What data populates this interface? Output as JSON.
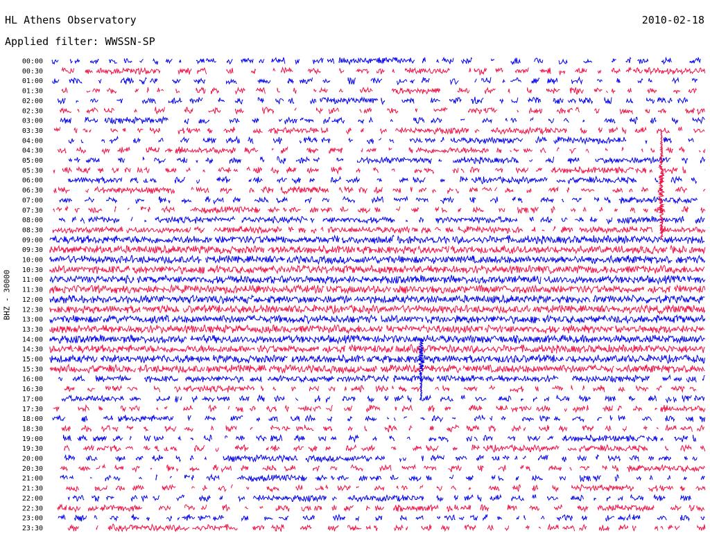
{
  "header": {
    "title": "HL Athens Observatory",
    "filter_label": "Applied filter: WWSSN-SP",
    "date": "2010-02-18"
  },
  "chart_data": {
    "type": "line",
    "title": "HL Athens Observatory",
    "subtitle": "Applied filter: WWSSN-SP",
    "date": "2010-02-18",
    "ylabel": "BHZ - 30000",
    "xlabel": "",
    "colors": [
      "#0000ee",
      "#ee1144"
    ],
    "row_labels": [
      "00:00",
      "00:30",
      "01:00",
      "01:30",
      "02:00",
      "02:30",
      "03:00",
      "03:30",
      "04:00",
      "04:30",
      "05:00",
      "05:30",
      "06:00",
      "06:30",
      "07:00",
      "07:30",
      "08:00",
      "08:30",
      "09:00",
      "09:30",
      "10:00",
      "10:30",
      "11:00",
      "11:30",
      "12:00",
      "12:30",
      "13:00",
      "13:30",
      "14:00",
      "14:30",
      "15:00",
      "15:30",
      "16:00",
      "16:30",
      "17:00",
      "17:30",
      "18:00",
      "18:30",
      "19:00",
      "19:30",
      "20:00",
      "20:30",
      "21:00",
      "21:30",
      "22:00",
      "22:30",
      "23:00",
      "23:30"
    ],
    "row_activity": [
      0.25,
      0.2,
      0.2,
      0.25,
      0.25,
      0.2,
      0.2,
      0.25,
      0.25,
      0.25,
      0.25,
      0.25,
      0.25,
      0.3,
      0.3,
      0.4,
      0.6,
      0.8,
      0.95,
      0.97,
      0.97,
      0.97,
      0.97,
      0.97,
      0.97,
      0.97,
      0.97,
      0.97,
      0.95,
      0.95,
      0.95,
      0.95,
      0.55,
      0.35,
      0.35,
      0.3,
      0.3,
      0.3,
      0.3,
      0.3,
      0.3,
      0.3,
      0.3,
      0.3,
      0.3,
      0.3,
      0.3,
      0.3
    ],
    "events": [
      {
        "start": "03:30",
        "end": "09:00",
        "peak_row": "06:30",
        "relative_minute": 28,
        "color_index": 1
      },
      {
        "start": "14:00",
        "end": "17:00",
        "peak_row": "15:00",
        "relative_minute": 17,
        "color_index": 0
      }
    ]
  }
}
